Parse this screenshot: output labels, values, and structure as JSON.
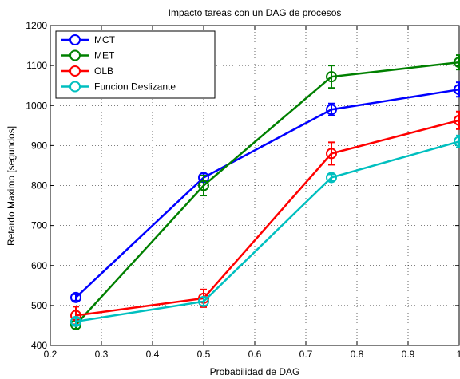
{
  "chart_data": {
    "type": "line",
    "title": "Impacto tareas con un DAG de procesos",
    "xlabel": "Probabilidad de DAG",
    "ylabel": "Retardo Maximo [segundos]",
    "xlim": [
      0.2,
      1.0
    ],
    "ylim": [
      400,
      1200
    ],
    "xticks": [
      0.2,
      0.3,
      0.4,
      0.5,
      0.6,
      0.7,
      0.8,
      0.9,
      1
    ],
    "yticks": [
      400,
      500,
      600,
      700,
      800,
      900,
      1000,
      1100,
      1200
    ],
    "grid": true,
    "legend_position": "top-left",
    "x": [
      0.25,
      0.5,
      0.75,
      1.0
    ],
    "series": [
      {
        "name": "MCT",
        "color": "#0000ff",
        "values": [
          520,
          820,
          990,
          1040
        ],
        "error": [
          8,
          10,
          15,
          18
        ]
      },
      {
        "name": "MET",
        "color": "#008000",
        "values": [
          452,
          800,
          1072,
          1108
        ],
        "error": [
          10,
          25,
          28,
          18
        ]
      },
      {
        "name": "OLB",
        "color": "#ff0000",
        "values": [
          475,
          518,
          880,
          963
        ],
        "error": [
          22,
          22,
          28,
          22
        ]
      },
      {
        "name": "Funcion Deslizante",
        "color": "#00bfbf",
        "values": [
          460,
          510,
          820,
          910
        ],
        "error": [
          8,
          10,
          8,
          15
        ]
      }
    ]
  }
}
